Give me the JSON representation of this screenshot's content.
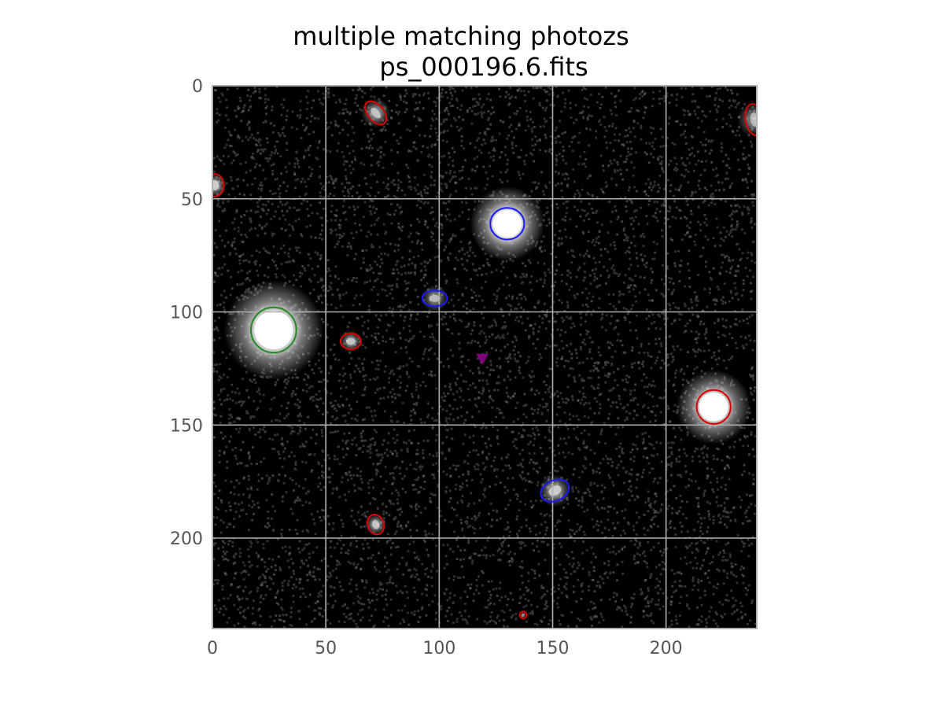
{
  "title_line1": "multiple matching photozs",
  "title_line2": "ps_000196.6.fits",
  "chart_data": {
    "type": "image",
    "xlim": [
      0,
      240
    ],
    "ylim": [
      240,
      0
    ],
    "x_ticks": [
      0,
      50,
      100,
      150,
      200
    ],
    "y_ticks": [
      0,
      50,
      100,
      150,
      200
    ],
    "x_tick_labels": [
      "0",
      "50",
      "100",
      "150",
      "200"
    ],
    "y_tick_labels": [
      "0",
      "50",
      "100",
      "150",
      "200"
    ],
    "grid": true,
    "colors": {
      "background": "#000000",
      "grid": "#b0b0b0",
      "red": "#dd0000",
      "blue": "#1a1aff",
      "green": "#1f8a1f",
      "marker": "#800080"
    },
    "sources": [
      {
        "x": 72,
        "y": 12,
        "rx": 6,
        "ry": 3.5,
        "angle": 50,
        "color": "red",
        "brightness": 0.55
      },
      {
        "x": 239,
        "y": 15,
        "rx": 7,
        "ry": 4,
        "angle": 80,
        "color": "red",
        "brightness": 0.5
      },
      {
        "x": 1,
        "y": 44,
        "rx": 4,
        "ry": 5,
        "angle": 0,
        "color": "red",
        "brightness": 0.6
      },
      {
        "x": 130,
        "y": 61,
        "rx": 7.5,
        "ry": 7,
        "angle": 0,
        "color": "blue",
        "brightness": 1.0
      },
      {
        "x": 98,
        "y": 94,
        "rx": 5.5,
        "ry": 3.5,
        "angle": 0,
        "color": "blue",
        "brightness": 0.5
      },
      {
        "x": 27,
        "y": 108,
        "rx": 10,
        "ry": 10,
        "angle": 0,
        "color": "green",
        "brightness": 1.0
      },
      {
        "x": 61,
        "y": 113,
        "rx": 4.5,
        "ry": 3.5,
        "angle": 0,
        "color": "red",
        "brightness": 0.55
      },
      {
        "x": 221,
        "y": 142,
        "rx": 7.5,
        "ry": 7.5,
        "angle": 0,
        "color": "red",
        "brightness": 0.95
      },
      {
        "x": 151,
        "y": 179,
        "rx": 6.5,
        "ry": 4.5,
        "angle": -25,
        "color": "blue",
        "brightness": 0.6
      },
      {
        "x": 72,
        "y": 194,
        "rx": 4.5,
        "ry": 3.5,
        "angle": 70,
        "color": "red",
        "brightness": 0.55
      },
      {
        "x": 137,
        "y": 234,
        "rx": 1.5,
        "ry": 1.5,
        "angle": 0,
        "color": "red",
        "brightness": 0.3
      }
    ],
    "marker": {
      "x": 119,
      "y": 121,
      "shape": "triangle-down",
      "color": "marker"
    }
  }
}
